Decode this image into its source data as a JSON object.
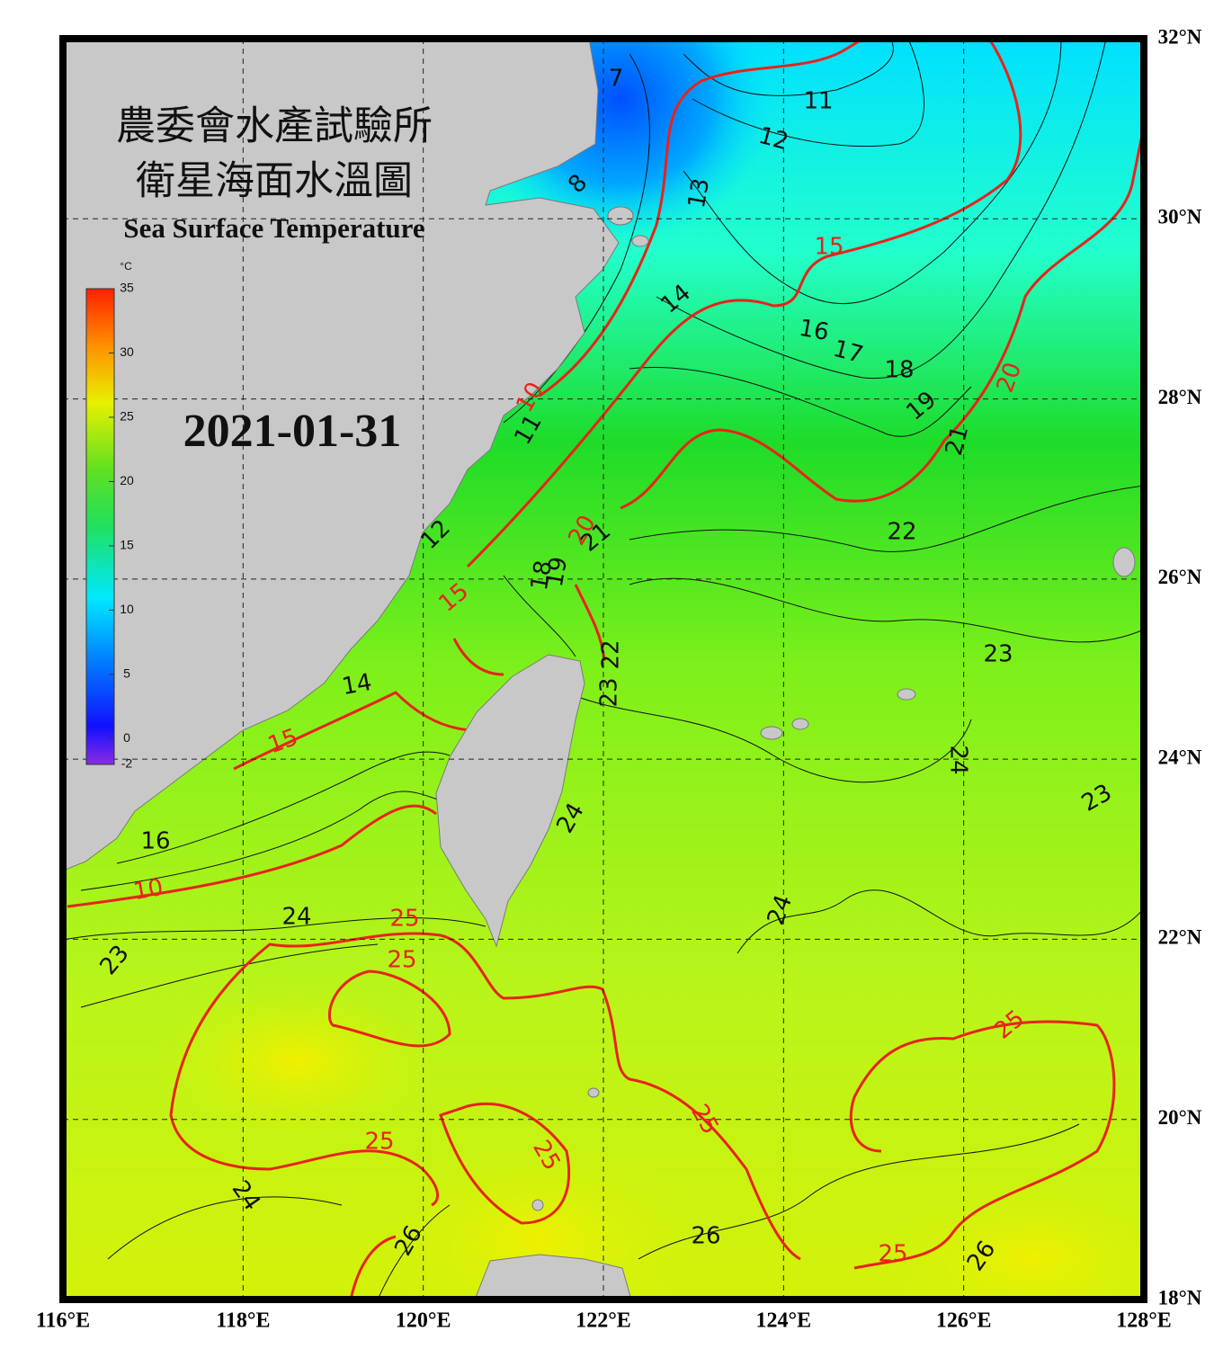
{
  "header": {
    "title_zh_1": "農委會水產試驗所",
    "title_zh_2": "衛星海面水溫圖",
    "title_en": "Sea Surface Temperature",
    "date": "2021-01-31"
  },
  "colorbar": {
    "unit": "°C",
    "min": -2,
    "max": 35,
    "ticks": [
      35,
      30,
      25,
      20,
      15,
      10,
      5,
      0,
      -2
    ]
  },
  "axes": {
    "lon_ticks": [
      {
        "value": 116,
        "label": "116°E"
      },
      {
        "value": 118,
        "label": "118°E"
      },
      {
        "value": 120,
        "label": "120°E"
      },
      {
        "value": 122,
        "label": "122°E"
      },
      {
        "value": 124,
        "label": "124°E"
      },
      {
        "value": 126,
        "label": "126°E"
      },
      {
        "value": 128,
        "label": "128°E"
      }
    ],
    "lat_ticks": [
      {
        "value": 32,
        "label": "32°N"
      },
      {
        "value": 30,
        "label": "30°N"
      },
      {
        "value": 28,
        "label": "28°N"
      },
      {
        "value": 26,
        "label": "26°N"
      },
      {
        "value": 24,
        "label": "24°N"
      },
      {
        "value": 22,
        "label": "22°N"
      },
      {
        "value": 20,
        "label": "20°N"
      },
      {
        "value": 18,
        "label": "18°N"
      }
    ]
  },
  "contours": {
    "black_labels": [
      "7",
      "11",
      "12",
      "13",
      "8",
      "14",
      "16",
      "17",
      "18",
      "19",
      "21",
      "22",
      "11",
      "12",
      "21",
      "18",
      "19",
      "23",
      "22",
      "23",
      "14",
      "16",
      "24",
      "23",
      "24",
      "24",
      "24",
      "23",
      "24",
      "26",
      "26",
      "26"
    ],
    "red_labels": [
      "10",
      "15",
      "20",
      "20",
      "15",
      "15",
      "10",
      "25",
      "25",
      "25",
      "25",
      "25",
      "25",
      "25"
    ]
  }
}
